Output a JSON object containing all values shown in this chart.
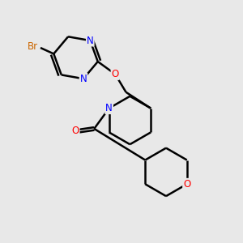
{
  "background_color": "#e8e8e8",
  "bond_color": "#000000",
  "bond_width": 1.8,
  "atom_colors": {
    "Br": "#cc6600",
    "N": "#0000ff",
    "O": "#ff0000",
    "C": "#000000"
  },
  "font_size": 8.5,
  "xlim": [
    0,
    10
  ],
  "ylim": [
    0,
    10
  ]
}
